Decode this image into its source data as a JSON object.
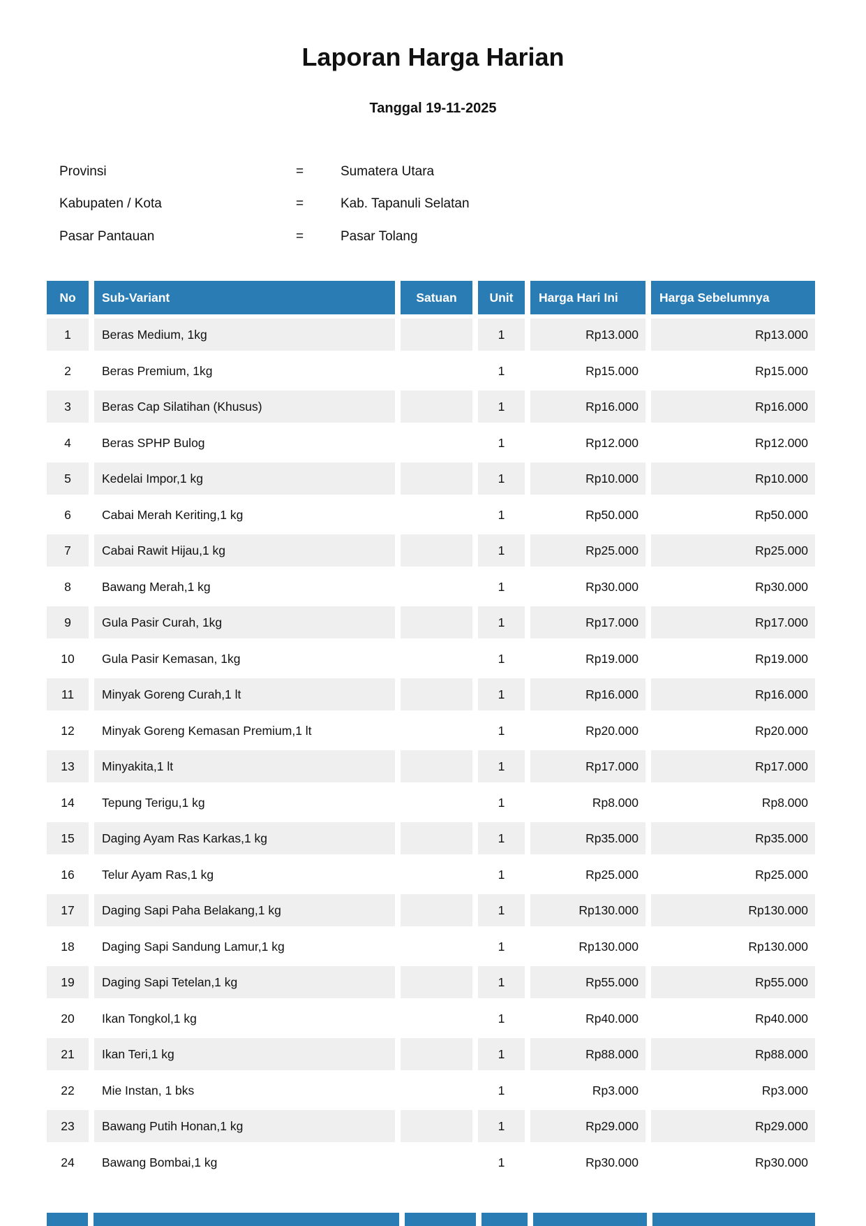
{
  "report": {
    "title": "Laporan Harga Harian",
    "subtitle": "Tanggal 19-11-2025",
    "meta": [
      {
        "label": "Provinsi",
        "separator": "=",
        "value": "Sumatera Utara"
      },
      {
        "label": "Kabupaten / Kota",
        "separator": "=",
        "value": "Kab. Tapanuli Selatan"
      },
      {
        "label": "Pasar Pantauan",
        "separator": "=",
        "value": "Pasar Tolang"
      }
    ]
  },
  "table": {
    "headers": {
      "no": "No",
      "sub_variant": "Sub-Variant",
      "satuan": "Satuan",
      "unit": "Unit",
      "harga_hari_ini": "Harga Hari Ini",
      "harga_sebelumnya": "Harga Sebelumnya"
    },
    "rows": [
      {
        "no": "1",
        "sub_variant": "Beras Medium, 1kg",
        "satuan": "",
        "unit": "1",
        "harga_hari_ini": "Rp13.000",
        "harga_sebelumnya": "Rp13.000"
      },
      {
        "no": "2",
        "sub_variant": "Beras Premium, 1kg",
        "satuan": "",
        "unit": "1",
        "harga_hari_ini": "Rp15.000",
        "harga_sebelumnya": "Rp15.000"
      },
      {
        "no": "3",
        "sub_variant": "Beras Cap Silatihan (Khusus)",
        "satuan": "",
        "unit": "1",
        "harga_hari_ini": "Rp16.000",
        "harga_sebelumnya": "Rp16.000"
      },
      {
        "no": "4",
        "sub_variant": "Beras SPHP Bulog",
        "satuan": "",
        "unit": "1",
        "harga_hari_ini": "Rp12.000",
        "harga_sebelumnya": "Rp12.000"
      },
      {
        "no": "5",
        "sub_variant": "Kedelai Impor,1 kg",
        "satuan": "",
        "unit": "1",
        "harga_hari_ini": "Rp10.000",
        "harga_sebelumnya": "Rp10.000"
      },
      {
        "no": "6",
        "sub_variant": "Cabai Merah Keriting,1 kg",
        "satuan": "",
        "unit": "1",
        "harga_hari_ini": "Rp50.000",
        "harga_sebelumnya": "Rp50.000"
      },
      {
        "no": "7",
        "sub_variant": "Cabai Rawit Hijau,1 kg",
        "satuan": "",
        "unit": "1",
        "harga_hari_ini": "Rp25.000",
        "harga_sebelumnya": "Rp25.000"
      },
      {
        "no": "8",
        "sub_variant": "Bawang Merah,1 kg",
        "satuan": "",
        "unit": "1",
        "harga_hari_ini": "Rp30.000",
        "harga_sebelumnya": "Rp30.000"
      },
      {
        "no": "9",
        "sub_variant": "Gula Pasir Curah, 1kg",
        "satuan": "",
        "unit": "1",
        "harga_hari_ini": "Rp17.000",
        "harga_sebelumnya": "Rp17.000"
      },
      {
        "no": "10",
        "sub_variant": "Gula Pasir Kemasan, 1kg",
        "satuan": "",
        "unit": "1",
        "harga_hari_ini": "Rp19.000",
        "harga_sebelumnya": "Rp19.000"
      },
      {
        "no": "11",
        "sub_variant": "Minyak Goreng Curah,1 lt",
        "satuan": "",
        "unit": "1",
        "harga_hari_ini": "Rp16.000",
        "harga_sebelumnya": "Rp16.000"
      },
      {
        "no": "12",
        "sub_variant": "Minyak Goreng Kemasan Premium,1 lt",
        "satuan": "",
        "unit": "1",
        "harga_hari_ini": "Rp20.000",
        "harga_sebelumnya": "Rp20.000"
      },
      {
        "no": "13",
        "sub_variant": "Minyakita,1 lt",
        "satuan": "",
        "unit": "1",
        "harga_hari_ini": "Rp17.000",
        "harga_sebelumnya": "Rp17.000"
      },
      {
        "no": "14",
        "sub_variant": "Tepung Terigu,1 kg",
        "satuan": "",
        "unit": "1",
        "harga_hari_ini": "Rp8.000",
        "harga_sebelumnya": "Rp8.000"
      },
      {
        "no": "15",
        "sub_variant": "Daging Ayam Ras Karkas,1 kg",
        "satuan": "",
        "unit": "1",
        "harga_hari_ini": "Rp35.000",
        "harga_sebelumnya": "Rp35.000"
      },
      {
        "no": "16",
        "sub_variant": "Telur Ayam Ras,1 kg",
        "satuan": "",
        "unit": "1",
        "harga_hari_ini": "Rp25.000",
        "harga_sebelumnya": "Rp25.000"
      },
      {
        "no": "17",
        "sub_variant": "Daging Sapi Paha Belakang,1 kg",
        "satuan": "",
        "unit": "1",
        "harga_hari_ini": "Rp130.000",
        "harga_sebelumnya": "Rp130.000"
      },
      {
        "no": "18",
        "sub_variant": "Daging Sapi Sandung Lamur,1 kg",
        "satuan": "",
        "unit": "1",
        "harga_hari_ini": "Rp130.000",
        "harga_sebelumnya": "Rp130.000"
      },
      {
        "no": "19",
        "sub_variant": "Daging Sapi Tetelan,1 kg",
        "satuan": "",
        "unit": "1",
        "harga_hari_ini": "Rp55.000",
        "harga_sebelumnya": "Rp55.000"
      },
      {
        "no": "20",
        "sub_variant": "Ikan Tongkol,1 kg",
        "satuan": "",
        "unit": "1",
        "harga_hari_ini": "Rp40.000",
        "harga_sebelumnya": "Rp40.000"
      },
      {
        "no": "21",
        "sub_variant": "Ikan Teri,1 kg",
        "satuan": "",
        "unit": "1",
        "harga_hari_ini": "Rp88.000",
        "harga_sebelumnya": "Rp88.000"
      },
      {
        "no": "22",
        "sub_variant": "Mie Instan, 1 bks",
        "satuan": "",
        "unit": "1",
        "harga_hari_ini": "Rp3.000",
        "harga_sebelumnya": "Rp3.000"
      },
      {
        "no": "23",
        "sub_variant": "Bawang Putih Honan,1 kg",
        "satuan": "",
        "unit": "1",
        "harga_hari_ini": "Rp29.000",
        "harga_sebelumnya": "Rp29.000"
      },
      {
        "no": "24",
        "sub_variant": "Bawang Bombai,1 kg",
        "satuan": "",
        "unit": "1",
        "harga_hari_ini": "Rp30.000",
        "harga_sebelumnya": "Rp30.000"
      }
    ]
  },
  "colors": {
    "header_blue": "#2a7cb5",
    "row_shade": "#efefef",
    "text": "#111111"
  }
}
